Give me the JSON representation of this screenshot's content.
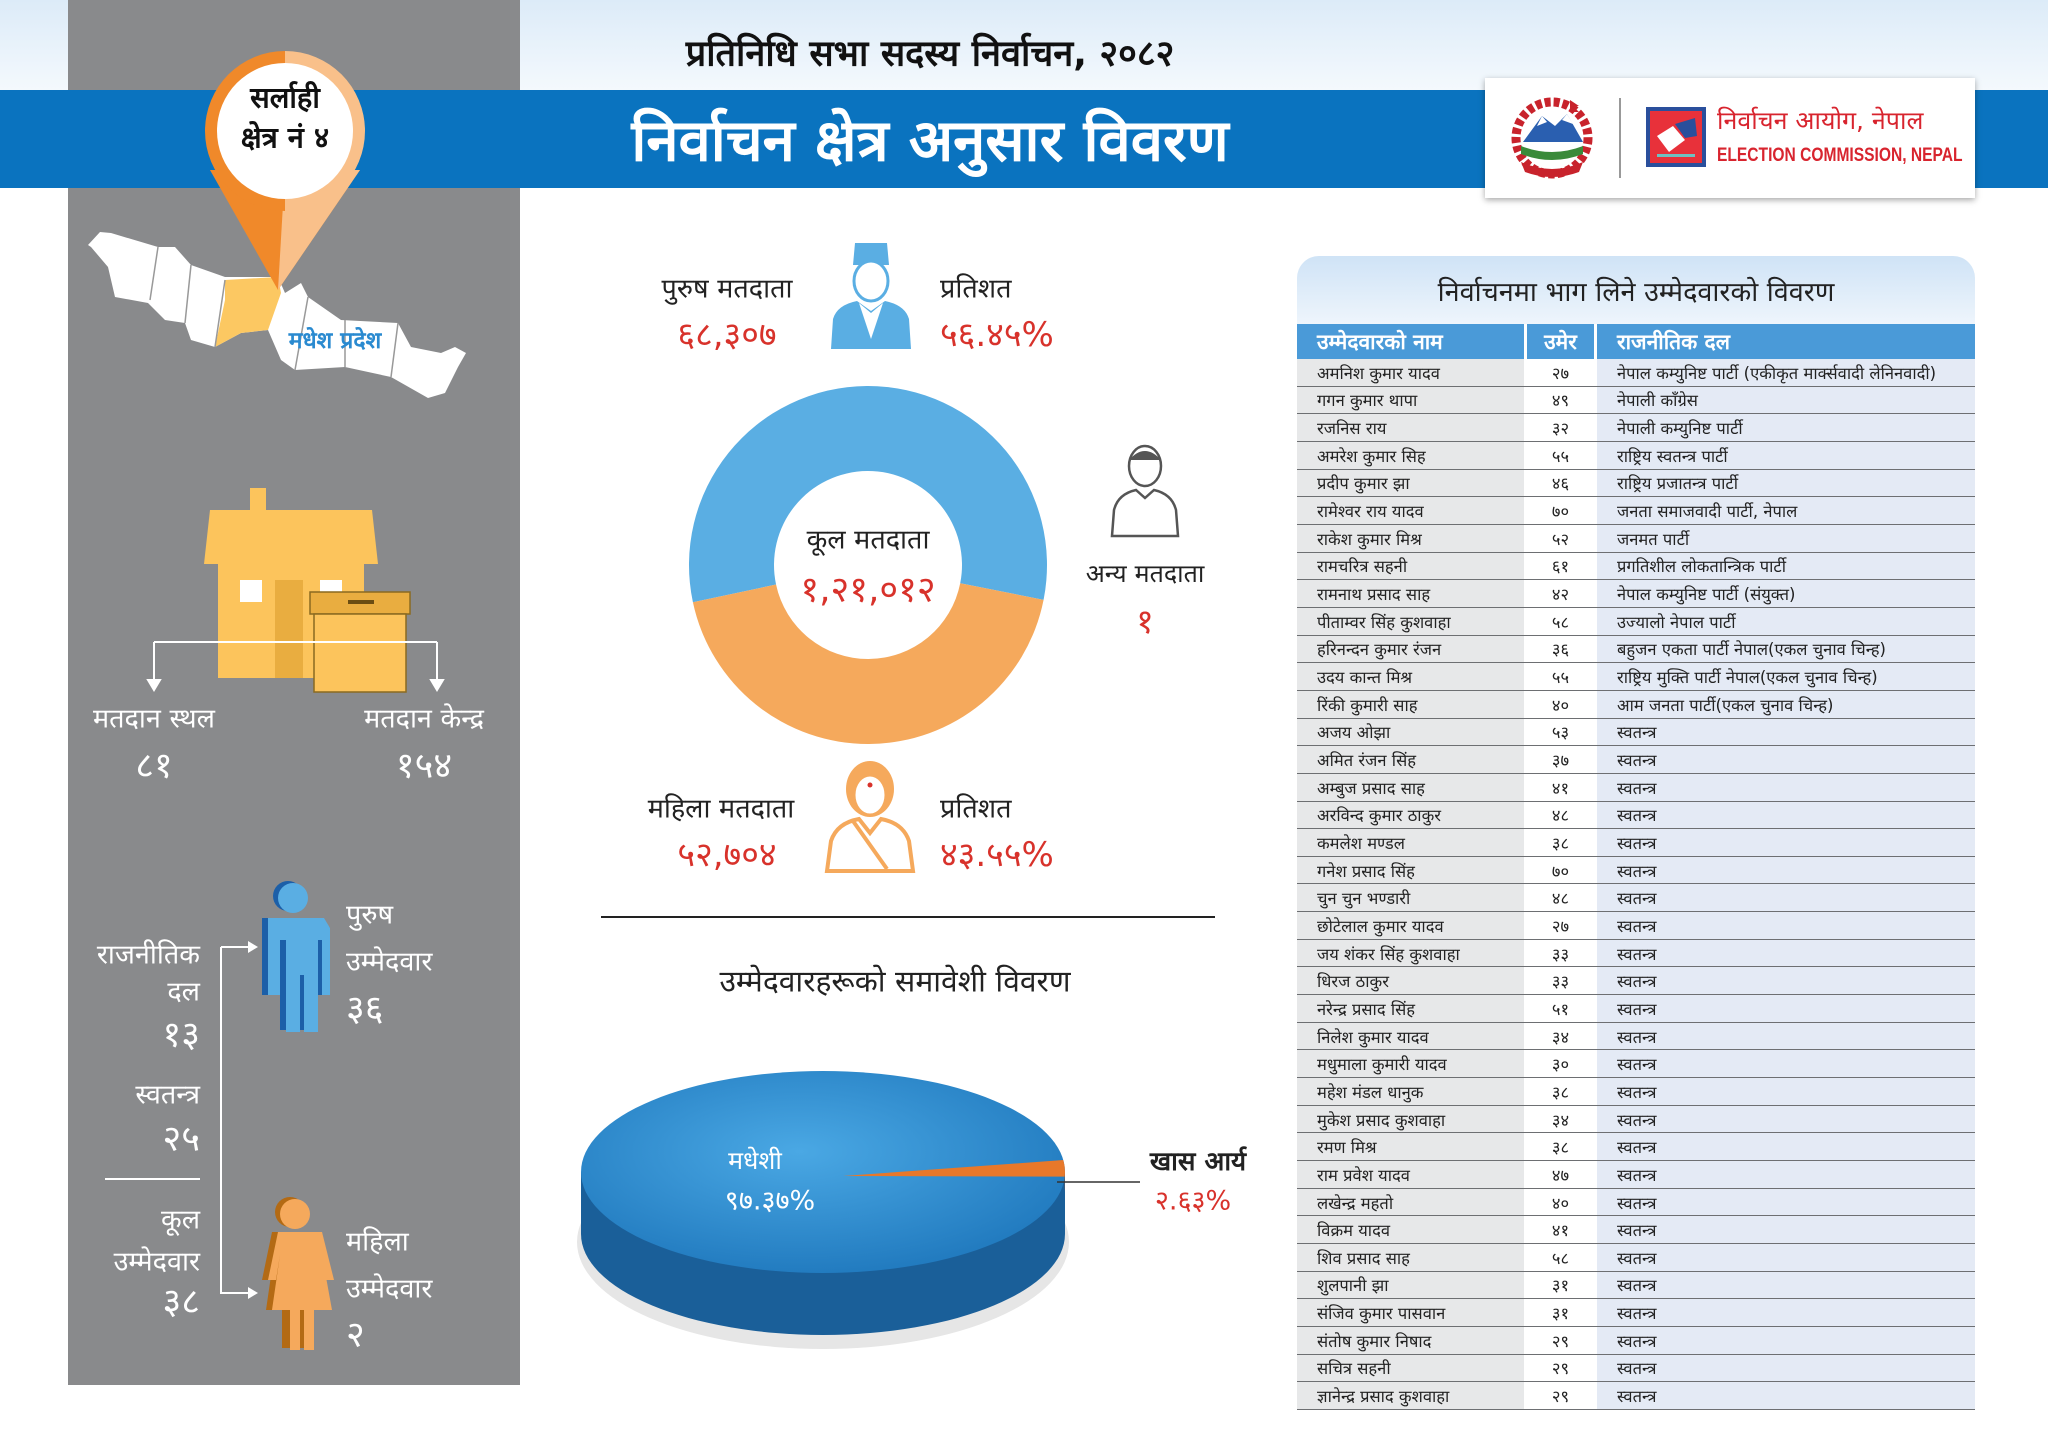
{
  "header": {
    "supertitle": "प्रतिनिधि सभा सदस्य निर्वाचन, २०८२",
    "title": "निर्वाचन क्षेत्र अनुसार विवरण",
    "logo_np": "निर्वाचन आयोग, नेपाल",
    "logo_en": "ELECTION COMMISSION, NEPAL"
  },
  "colors": {
    "brand_blue": "#0a73bf",
    "accent_red": "#d8322b",
    "male_blue": "#5aaee3",
    "female_orange": "#f5a95c",
    "panel_gray": "#898a8c"
  },
  "constituency": {
    "district": "सर्लाही",
    "number": "क्षेत्र नं ४",
    "province": "मधेश प्रदेश"
  },
  "polling": {
    "stations_label": "मतदान स्थल",
    "stations": "८१",
    "centers_label": "मतदान केन्द्र",
    "centers": "१५४"
  },
  "candidates_summary": {
    "party_label1": "राजनीतिक",
    "party_label2": "दल",
    "party_count": "१३",
    "independent_label": "स्वतन्त्र",
    "independent_count": "२५",
    "total_label1": "कूल",
    "total_label2": "उम्मेदवार",
    "total_count": "३८",
    "male_label1": "पुरुष",
    "male_label2": "उम्मेदवार",
    "male_count": "३६",
    "female_label1": "महिला",
    "female_label2": "उम्मेदवार",
    "female_count": "२"
  },
  "voters": {
    "male_label": "पुरुष मतदाता",
    "male_count": "६८,३०७",
    "male_pct_label": "प्रतिशत",
    "male_pct": "५६.४५%",
    "female_label": "महिला मतदाता",
    "female_count": "५२,७०४",
    "female_pct_label": "प्रतिशत",
    "female_pct": "४३.५५%",
    "total_label": "कूल मतदाता",
    "total_count": "१,२१,०१२",
    "other_label": "अन्य मतदाता",
    "other_count": "१"
  },
  "inclusion": {
    "title": "उम्मेदवारहरूको समावेशी विवरण"
  },
  "chart_data": [
    {
      "type": "pie",
      "variant": "donut",
      "center_label": "कूल मतदाता",
      "center_value": "१,२१,०१२",
      "slices": [
        {
          "name": "पुरुष मतदाता",
          "value": 68307,
          "percent": 56.45,
          "color": "#5aaee3"
        },
        {
          "name": "महिला मतदाता",
          "value": 52704,
          "percent": 43.55,
          "color": "#f5a95c"
        }
      ]
    },
    {
      "type": "pie",
      "variant": "3d",
      "title": "उम्मेदवारहरूको समावेशी विवरण",
      "slices": [
        {
          "name": "मधेशी",
          "percent": 97.37,
          "label": "९७.३७%",
          "color": "#2f8fd0"
        },
        {
          "name": "खास आर्य",
          "percent": 2.63,
          "label": "२.६३%",
          "color": "#e8782a"
        }
      ]
    }
  ],
  "table": {
    "title": "निर्वाचनमा भाग लिने उम्मेदवारको विवरण",
    "columns": [
      "उम्मेदवारको नाम",
      "उमेर",
      "राजनीतिक दल"
    ],
    "rows": [
      [
        "अमनिश कुमार यादव",
        "२७",
        "नेपाल कम्युनिष्ट पार्टी (एकीकृत मार्क्सवादी लेनिनवादी)"
      ],
      [
        "गगन कुमार थापा",
        "४९",
        "नेपाली काँग्रेस"
      ],
      [
        "रजनिस राय",
        "३२",
        "नेपाली कम्युनिष्ट पार्टी"
      ],
      [
        "अमरेश कुमार सिह",
        "५५",
        "राष्ट्रिय स्वतन्त्र पार्टी"
      ],
      [
        "प्रदीप कुमार झा",
        "४६",
        "राष्ट्रिय प्रजातन्त्र पार्टी"
      ],
      [
        "रामेश्वर राय यादव",
        "७०",
        "जनता समाजवादी पार्टी, नेपाल"
      ],
      [
        "राकेश कुमार मिश्र",
        "५२",
        "जनमत पार्टी"
      ],
      [
        "रामचरित्र सहनी",
        "६१",
        "प्रगतिशील लोकतान्त्रिक पार्टी"
      ],
      [
        "रामनाथ प्रसाद साह",
        "४२",
        "नेपाल कम्युनिष्ट पार्टी (संयुक्त)"
      ],
      [
        "पीताम्वर सिंह कुशवाहा",
        "५८",
        "उज्यालो नेपाल पार्टी"
      ],
      [
        "हरिनन्दन कुमार रंजन",
        "३६",
        "बहुजन एकता पार्टी नेपाल(एकल चुनाव चिन्ह)"
      ],
      [
        "उदय कान्त मिश्र",
        "५५",
        "राष्ट्रिय मुक्ति पार्टी नेपाल(एकल चुनाव चिन्ह)"
      ],
      [
        "रिंकी कुमारी साह",
        "४०",
        "आम जनता पार्टी(एकल चुनाव चिन्ह)"
      ],
      [
        "अजय ओझा",
        "५३",
        "स्वतन्त्र"
      ],
      [
        "अमित रंजन सिंह",
        "३७",
        "स्वतन्त्र"
      ],
      [
        "अम्बुज प्रसाद साह",
        "४१",
        "स्वतन्त्र"
      ],
      [
        "अरविन्द कुमार ठाकुर",
        "४८",
        "स्वतन्त्र"
      ],
      [
        "कमलेश मण्डल",
        "३८",
        "स्वतन्त्र"
      ],
      [
        "गनेश प्रसाद सिंह",
        "७०",
        "स्वतन्त्र"
      ],
      [
        "चुन चुन भण्डारी",
        "४८",
        "स्वतन्त्र"
      ],
      [
        "छोटेलाल कुमार यादव",
        "२७",
        "स्वतन्त्र"
      ],
      [
        "जय शंकर सिंह कुशवाहा",
        "३३",
        "स्वतन्त्र"
      ],
      [
        "धिरज ठाकुर",
        "३३",
        "स्वतन्त्र"
      ],
      [
        "नरेन्द्र प्रसाद सिंह",
        "५१",
        "स्वतन्त्र"
      ],
      [
        "निलेश कुमार यादव",
        "३४",
        "स्वतन्त्र"
      ],
      [
        "मधुमाला कुमारी यादव",
        "३०",
        "स्वतन्त्र"
      ],
      [
        "महेश मंडल धानुक",
        "३८",
        "स्वतन्त्र"
      ],
      [
        "मुकेश प्रसाद कुशवाहा",
        "३४",
        "स्वतन्त्र"
      ],
      [
        "रमण मिश्र",
        "३८",
        "स्वतन्त्र"
      ],
      [
        "राम प्रवेश यादव",
        "४७",
        "स्वतन्त्र"
      ],
      [
        "लखेन्द्र महतो",
        "४०",
        "स्वतन्त्र"
      ],
      [
        "विक्रम यादव",
        "४१",
        "स्वतन्त्र"
      ],
      [
        "शिव प्रसाद साह",
        "५८",
        "स्वतन्त्र"
      ],
      [
        "शुलपानी झा",
        "३१",
        "स्वतन्त्र"
      ],
      [
        "संजिव कुमार पासवान",
        "३१",
        "स्वतन्त्र"
      ],
      [
        "संतोष कुमार निषाद",
        "२९",
        "स्वतन्त्र"
      ],
      [
        "सचित्र सहनी",
        "२९",
        "स्वतन्त्र"
      ],
      [
        "ज्ञानेन्द्र प्रसाद कुशवाहा",
        "२९",
        "स्वतन्त्र"
      ]
    ]
  }
}
